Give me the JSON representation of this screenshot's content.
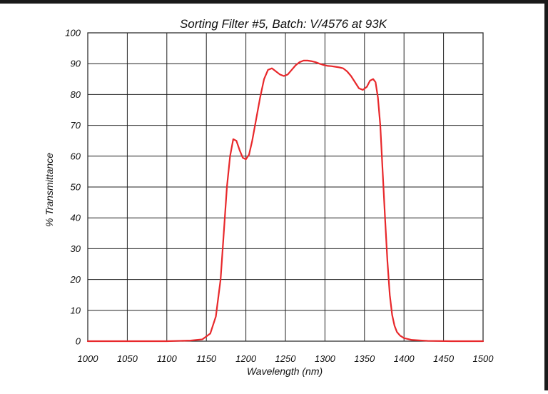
{
  "chart_data": {
    "type": "line",
    "title": "Sorting Filter #5, Batch: V/4576  at 93K",
    "xlabel": "Wavelength (nm)",
    "ylabel": "% Transmittance",
    "xlim": [
      1000,
      1500
    ],
    "ylim": [
      0,
      100
    ],
    "x_ticks": [
      "1000",
      "1050",
      "1100",
      "1150",
      "1200",
      "1250",
      "1300",
      "1350",
      "1400",
      "1450",
      "1500"
    ],
    "y_ticks": [
      "0",
      "10",
      "20",
      "30",
      "40",
      "50",
      "60",
      "70",
      "80",
      "90",
      "100"
    ],
    "grid": true,
    "legend": "none",
    "line_color": "#e8282b",
    "series": [
      {
        "x": [
          1000,
          1100,
          1130,
          1145,
          1155,
          1162,
          1168,
          1172,
          1176,
          1180,
          1184,
          1188,
          1192,
          1196,
          1200,
          1204,
          1208,
          1213,
          1218,
          1223,
          1228,
          1233,
          1238,
          1243,
          1248,
          1253,
          1258,
          1263,
          1268,
          1273,
          1278,
          1283,
          1288,
          1293,
          1298,
          1303,
          1308,
          1313,
          1318,
          1323,
          1328,
          1333,
          1338,
          1343,
          1348,
          1353,
          1357,
          1361,
          1364,
          1367,
          1370,
          1373,
          1376,
          1379,
          1382,
          1385,
          1388,
          1391,
          1395,
          1400,
          1410,
          1430,
          1460,
          1500
        ],
        "y": [
          0,
          0,
          0.2,
          0.6,
          2.5,
          8,
          20,
          35,
          50,
          60,
          65.5,
          65,
          62,
          59.5,
          59,
          60.5,
          65,
          72,
          79,
          85,
          88,
          88.5,
          87.5,
          86.5,
          86,
          86.5,
          88,
          89.5,
          90.5,
          91,
          91,
          90.8,
          90.5,
          90,
          89.6,
          89.3,
          89.2,
          89,
          88.8,
          88.5,
          87.5,
          86,
          84,
          82,
          81.5,
          82.5,
          84.5,
          85,
          84,
          79,
          70,
          55,
          40,
          26,
          15,
          8.5,
          5,
          3,
          1.8,
          1,
          0.4,
          0.1,
          0,
          0
        ]
      }
    ]
  }
}
